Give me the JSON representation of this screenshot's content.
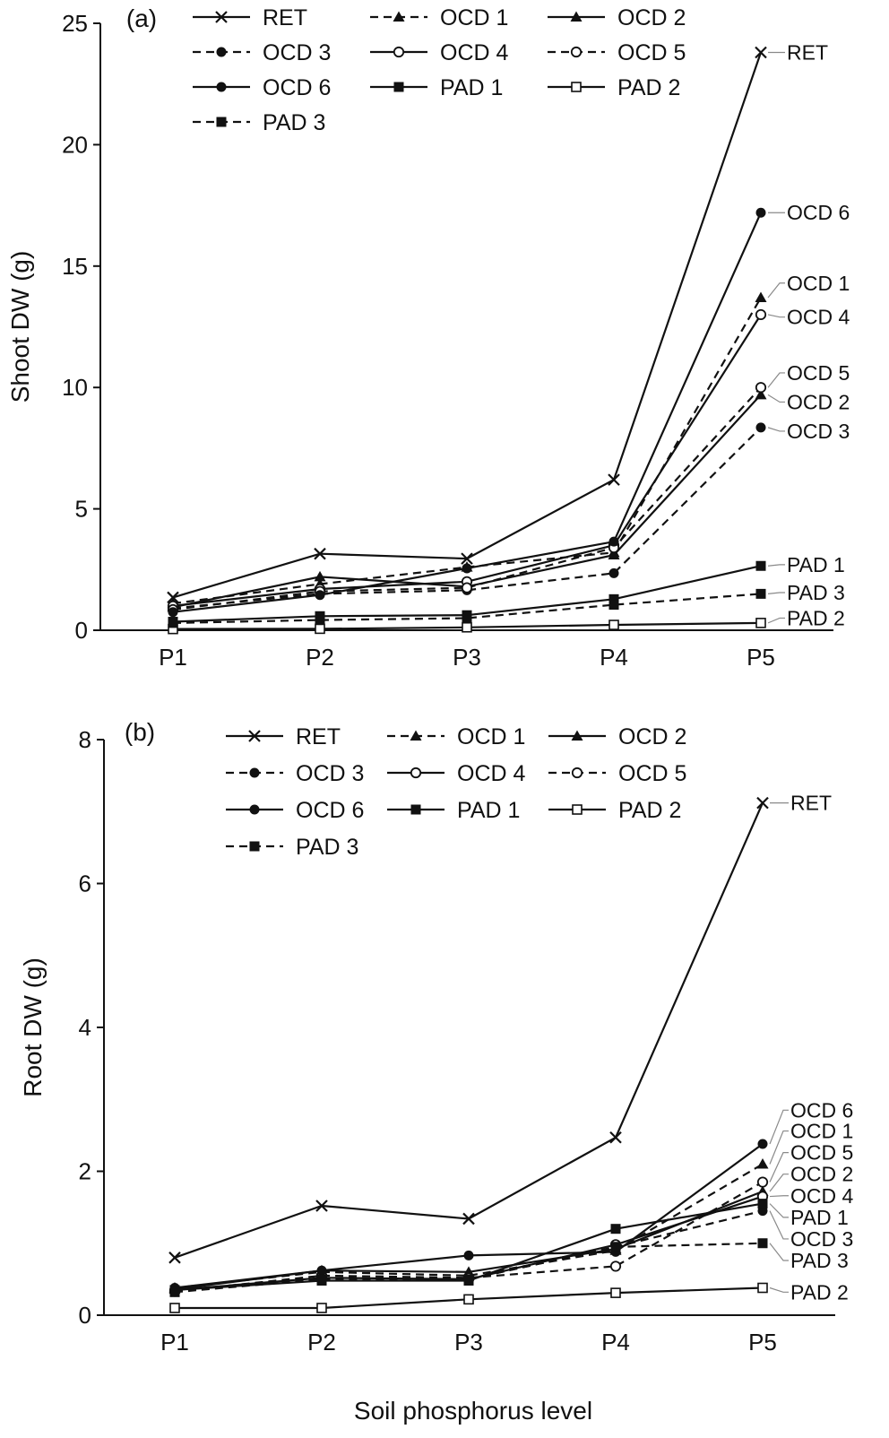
{
  "x_axis_title": "Soil phosphorus level",
  "chart_data": [
    {
      "type": "line",
      "panel_label": "(a)",
      "ylabel": "Shoot DW (g)",
      "ylim": [
        0,
        25
      ],
      "yticks": [
        0,
        5,
        10,
        15,
        20,
        25
      ],
      "categories": [
        "P1",
        "P2",
        "P3",
        "P4",
        "P5"
      ],
      "legend_columns": 3,
      "series": [
        {
          "name": "RET",
          "values": [
            1.35,
            3.15,
            2.95,
            6.2,
            23.8
          ],
          "marker": "x",
          "dash": "solid"
        },
        {
          "name": "OCD 1",
          "values": [
            1.1,
            1.9,
            2.6,
            3.2,
            13.7
          ],
          "marker": "triangle",
          "dash": "dashed"
        },
        {
          "name": "OCD 2",
          "values": [
            0.95,
            2.2,
            1.8,
            3.1,
            9.7
          ],
          "marker": "triangle",
          "dash": "solid"
        },
        {
          "name": "OCD 3",
          "values": [
            0.9,
            1.5,
            1.65,
            2.35,
            8.35
          ],
          "marker": "circle",
          "dash": "dashed"
        },
        {
          "name": "OCD 4",
          "values": [
            1.0,
            1.7,
            2.0,
            3.5,
            13.0
          ],
          "marker": "circle-open",
          "dash": "solid"
        },
        {
          "name": "OCD 5",
          "values": [
            0.85,
            1.6,
            1.75,
            3.4,
            10.0
          ],
          "marker": "circle-open",
          "dash": "dashed"
        },
        {
          "name": "OCD 6",
          "values": [
            0.75,
            1.45,
            2.55,
            3.65,
            17.2
          ],
          "marker": "circle",
          "dash": "solid"
        },
        {
          "name": "PAD 1",
          "values": [
            0.35,
            0.58,
            0.62,
            1.28,
            2.65
          ],
          "marker": "square",
          "dash": "solid"
        },
        {
          "name": "PAD 2",
          "values": [
            0.05,
            0.06,
            0.12,
            0.22,
            0.3
          ],
          "marker": "square-open",
          "dash": "solid"
        },
        {
          "name": "PAD 3",
          "values": [
            0.3,
            0.42,
            0.5,
            1.05,
            1.5
          ],
          "marker": "square",
          "dash": "dashed"
        }
      ],
      "end_labels": [
        {
          "name": "RET",
          "label_y": 23.8
        },
        {
          "name": "OCD 6",
          "label_y": 17.2
        },
        {
          "name": "OCD 1",
          "label_y": 14.3
        },
        {
          "name": "OCD 4",
          "label_y": 12.9
        },
        {
          "name": "OCD 5",
          "label_y": 10.6
        },
        {
          "name": "OCD 2",
          "label_y": 9.4
        },
        {
          "name": "OCD 3",
          "label_y": 8.2
        },
        {
          "name": "PAD 1",
          "label_y": 2.7
        },
        {
          "name": "PAD 3",
          "label_y": 1.55
        },
        {
          "name": "PAD 2",
          "label_y": 0.5
        }
      ]
    },
    {
      "type": "line",
      "panel_label": "(b)",
      "ylabel": "Root DW (g)",
      "ylim": [
        0,
        8
      ],
      "yticks": [
        0,
        2,
        4,
        6,
        8
      ],
      "categories": [
        "P1",
        "P2",
        "P3",
        "P4",
        "P5"
      ],
      "legend_columns": 3,
      "series": [
        {
          "name": "RET",
          "values": [
            0.8,
            1.52,
            1.34,
            2.47,
            7.12
          ],
          "marker": "x",
          "dash": "solid"
        },
        {
          "name": "OCD 1",
          "values": [
            0.38,
            0.6,
            0.55,
            0.9,
            2.1
          ],
          "marker": "triangle",
          "dash": "dashed"
        },
        {
          "name": "OCD 2",
          "values": [
            0.36,
            0.62,
            0.6,
            0.92,
            1.72
          ],
          "marker": "triangle",
          "dash": "solid"
        },
        {
          "name": "OCD 3",
          "values": [
            0.34,
            0.5,
            0.5,
            0.95,
            1.45
          ],
          "marker": "circle",
          "dash": "dashed"
        },
        {
          "name": "OCD 4",
          "values": [
            0.35,
            0.52,
            0.5,
            0.98,
            1.65
          ],
          "marker": "circle-open",
          "dash": "solid"
        },
        {
          "name": "OCD 5",
          "values": [
            0.33,
            0.55,
            0.52,
            0.68,
            1.85
          ],
          "marker": "circle-open",
          "dash": "dashed"
        },
        {
          "name": "OCD 6",
          "values": [
            0.38,
            0.62,
            0.83,
            0.88,
            2.38
          ],
          "marker": "circle",
          "dash": "solid"
        },
        {
          "name": "PAD 1",
          "values": [
            0.35,
            0.48,
            0.48,
            1.2,
            1.55
          ],
          "marker": "square",
          "dash": "solid"
        },
        {
          "name": "PAD 2",
          "values": [
            0.1,
            0.1,
            0.22,
            0.31,
            0.38
          ],
          "marker": "square-open",
          "dash": "solid"
        },
        {
          "name": "PAD 3",
          "values": [
            0.32,
            0.5,
            0.5,
            0.95,
            1.0
          ],
          "marker": "square",
          "dash": "dashed"
        }
      ],
      "end_labels": [
        {
          "name": "RET",
          "label_y": 7.12
        },
        {
          "name": "OCD 6",
          "label_y": 2.85
        },
        {
          "name": "OCD 1",
          "label_y": 2.56
        },
        {
          "name": "OCD 5",
          "label_y": 2.26
        },
        {
          "name": "OCD 2",
          "label_y": 1.96
        },
        {
          "name": "OCD 4",
          "label_y": 1.66
        },
        {
          "name": "PAD 1",
          "label_y": 1.36
        },
        {
          "name": "OCD 3",
          "label_y": 1.06
        },
        {
          "name": "PAD 3",
          "label_y": 0.76
        },
        {
          "name": "PAD 2",
          "label_y": 0.32
        }
      ]
    }
  ]
}
